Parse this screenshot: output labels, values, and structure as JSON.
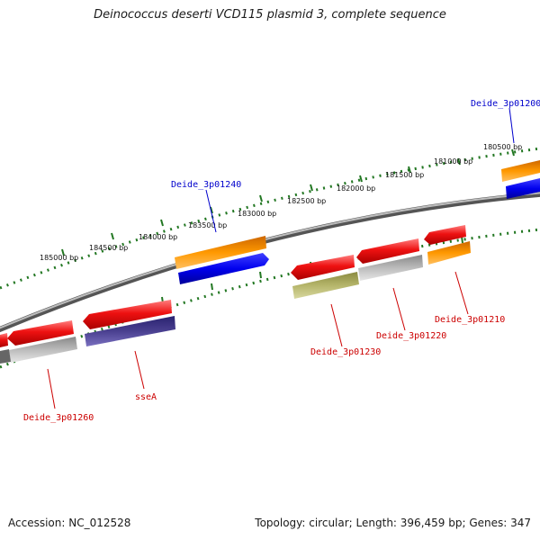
{
  "title": "Deinococcus deserti VCD115 plasmid 3, complete sequence",
  "footer": {
    "accession": "Accession: NC_012528",
    "topology": "Topology: circular; Length: 396,459 bp; Genes: 347"
  },
  "scale_labels": [
    "180500 bp",
    "181000 bp",
    "181500 bp",
    "182000 bp",
    "182500 bp",
    "183000 bp",
    "183500 bp",
    "184000 bp",
    "184500 bp",
    "185000 bp"
  ],
  "gene_labels": {
    "forward": [
      "Deide_3p01200",
      "Deide_3p01240"
    ],
    "reverse": [
      "Deide_3p01210",
      "Deide_3p01220",
      "Deide_3p01230",
      "sseA",
      "Deide_3p01260"
    ]
  },
  "colors": {
    "forward_label": "#0000cc",
    "reverse_label": "#cc0000",
    "cds": "#ee1111",
    "gene_orange": "#ff9900",
    "gene_blue": "#1010ee",
    "backbone": "#8a8a8a",
    "ticks": "#227722",
    "gray_feature": "#b8b8b8",
    "olive_feature": "#b5b56a",
    "purple_feature": "#4a4090"
  }
}
